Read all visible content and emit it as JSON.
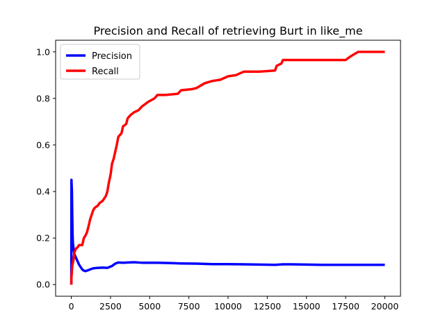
{
  "chart_data": {
    "type": "line",
    "title": "Precision and Recall of retrieving Burt in like_me",
    "xlabel": "",
    "ylabel": "",
    "xlim": [
      -1000,
      21000
    ],
    "ylim": [
      -0.05,
      1.05
    ],
    "x_ticks": [
      0,
      2500,
      5000,
      7500,
      10000,
      12500,
      15000,
      17500,
      20000
    ],
    "x_tick_labels": [
      "0",
      "2500",
      "5000",
      "7500",
      "10000",
      "12500",
      "15000",
      "17500",
      "20000"
    ],
    "y_ticks": [
      0.0,
      0.2,
      0.4,
      0.6,
      0.8,
      1.0
    ],
    "y_tick_labels": [
      "0.0",
      "0.2",
      "0.4",
      "0.6",
      "0.8",
      "1.0"
    ],
    "grid": false,
    "legend_placement": "upper-left",
    "series": [
      {
        "name": "Precision",
        "color": "#0000ff",
        "points": [
          [
            1,
            0.0
          ],
          [
            10,
            0.45
          ],
          [
            40,
            0.4
          ],
          [
            60,
            0.3
          ],
          [
            80,
            0.22
          ],
          [
            100,
            0.18
          ],
          [
            150,
            0.15
          ],
          [
            200,
            0.13
          ],
          [
            300,
            0.115
          ],
          [
            400,
            0.1
          ],
          [
            500,
            0.085
          ],
          [
            600,
            0.075
          ],
          [
            700,
            0.065
          ],
          [
            800,
            0.06
          ],
          [
            900,
            0.058
          ],
          [
            1000,
            0.06
          ],
          [
            1200,
            0.065
          ],
          [
            1400,
            0.07
          ],
          [
            1700,
            0.072
          ],
          [
            2000,
            0.073
          ],
          [
            2300,
            0.072
          ],
          [
            2600,
            0.08
          ],
          [
            2800,
            0.09
          ],
          [
            3000,
            0.095
          ],
          [
            3300,
            0.094
          ],
          [
            3600,
            0.095
          ],
          [
            4000,
            0.096
          ],
          [
            4500,
            0.094
          ],
          [
            5000,
            0.094
          ],
          [
            5500,
            0.094
          ],
          [
            6000,
            0.093
          ],
          [
            7000,
            0.091
          ],
          [
            8000,
            0.09
          ],
          [
            9000,
            0.088
          ],
          [
            10000,
            0.088
          ],
          [
            11000,
            0.087
          ],
          [
            12000,
            0.086
          ],
          [
            13000,
            0.085
          ],
          [
            13500,
            0.087
          ],
          [
            14000,
            0.087
          ],
          [
            15000,
            0.086
          ],
          [
            16000,
            0.085
          ],
          [
            17000,
            0.085
          ],
          [
            18000,
            0.085
          ],
          [
            19000,
            0.085
          ],
          [
            20000,
            0.085
          ]
        ]
      },
      {
        "name": "Recall",
        "color": "#ff0000",
        "points": [
          [
            1,
            0.0
          ],
          [
            10,
            0.03
          ],
          [
            60,
            0.08
          ],
          [
            150,
            0.11
          ],
          [
            200,
            0.14
          ],
          [
            300,
            0.155
          ],
          [
            400,
            0.16
          ],
          [
            500,
            0.17
          ],
          [
            700,
            0.17
          ],
          [
            800,
            0.2
          ],
          [
            900,
            0.21
          ],
          [
            1000,
            0.225
          ],
          [
            1100,
            0.25
          ],
          [
            1200,
            0.28
          ],
          [
            1300,
            0.3
          ],
          [
            1400,
            0.32
          ],
          [
            1500,
            0.33
          ],
          [
            1700,
            0.34
          ],
          [
            1800,
            0.35
          ],
          [
            2000,
            0.36
          ],
          [
            2200,
            0.38
          ],
          [
            2300,
            0.4
          ],
          [
            2400,
            0.44
          ],
          [
            2500,
            0.47
          ],
          [
            2600,
            0.52
          ],
          [
            2700,
            0.54
          ],
          [
            2800,
            0.57
          ],
          [
            2900,
            0.6
          ],
          [
            3000,
            0.635
          ],
          [
            3200,
            0.65
          ],
          [
            3300,
            0.68
          ],
          [
            3500,
            0.69
          ],
          [
            3600,
            0.715
          ],
          [
            3800,
            0.73
          ],
          [
            4000,
            0.74
          ],
          [
            4300,
            0.75
          ],
          [
            4500,
            0.765
          ],
          [
            4700,
            0.775
          ],
          [
            4900,
            0.785
          ],
          [
            5300,
            0.8
          ],
          [
            5500,
            0.815
          ],
          [
            6000,
            0.815
          ],
          [
            6800,
            0.82
          ],
          [
            7000,
            0.835
          ],
          [
            7700,
            0.84
          ],
          [
            8000,
            0.845
          ],
          [
            8500,
            0.865
          ],
          [
            9000,
            0.875
          ],
          [
            9500,
            0.88
          ],
          [
            10000,
            0.895
          ],
          [
            10500,
            0.9
          ],
          [
            11000,
            0.915
          ],
          [
            12000,
            0.915
          ],
          [
            13000,
            0.92
          ],
          [
            13100,
            0.94
          ],
          [
            13400,
            0.95
          ],
          [
            13500,
            0.965
          ],
          [
            15000,
            0.965
          ],
          [
            16000,
            0.965
          ],
          [
            17500,
            0.965
          ],
          [
            17800,
            0.98
          ],
          [
            18300,
            1.0
          ],
          [
            20000,
            1.0
          ]
        ]
      }
    ]
  }
}
